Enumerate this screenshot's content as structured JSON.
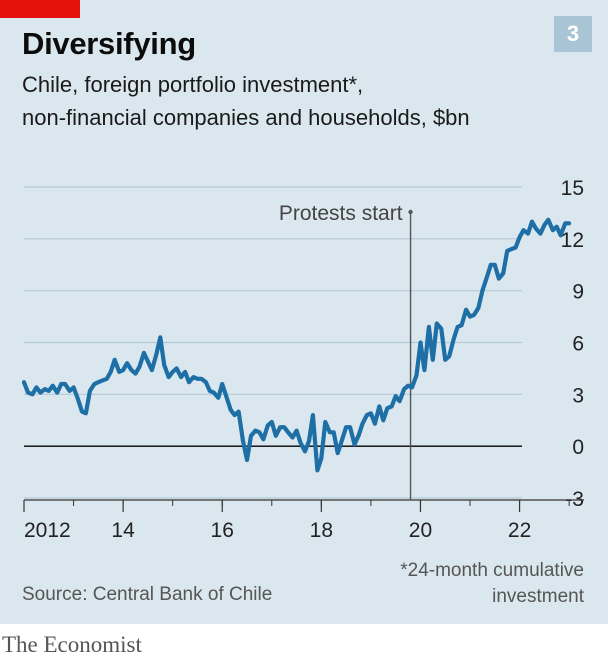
{
  "header": {
    "title": "Diversifying",
    "badge": "3",
    "subtitle_line1": "Chile, foreign portfolio investment*,",
    "subtitle_line2": "non-financial companies and households, $bn"
  },
  "footer": {
    "footnote_line1": "*24-month cumulative",
    "footnote_line2": "investment",
    "source": "Source: Central Bank of Chile",
    "brand": "The Economist"
  },
  "colors": {
    "accent_red": "#e3120b",
    "line": "#1d6fa5",
    "background": "#dbe7ef",
    "badge": "#a9c4d4"
  },
  "chart_data": {
    "type": "line",
    "title": "Diversifying",
    "subtitle": "Chile, foreign portfolio investment*, non-financial companies and households, $bn",
    "ylim": [
      -3,
      15
    ],
    "xlim": [
      2012,
      2023.3
    ],
    "y_ticks": [
      15,
      12,
      9,
      6,
      3,
      0,
      -3
    ],
    "x_ticks": [
      {
        "value": 2012,
        "label": "2012"
      },
      {
        "value": 2014,
        "label": "14"
      },
      {
        "value": 2016,
        "label": "16"
      },
      {
        "value": 2018,
        "label": "18"
      },
      {
        "value": 2020,
        "label": "20"
      },
      {
        "value": 2022,
        "label": "22"
      }
    ],
    "annotation": {
      "label": "Protests start",
      "x": 2019.8
    },
    "grid": true,
    "series": [
      {
        "x": [
          2012.0,
          2012.08,
          2012.17,
          2012.25,
          2012.33,
          2012.42,
          2012.5,
          2012.58,
          2012.67,
          2012.75,
          2012.83,
          2012.92,
          2013.0,
          2013.08,
          2013.17,
          2013.25,
          2013.33,
          2013.42,
          2013.5,
          2013.58,
          2013.67,
          2013.75,
          2013.83,
          2013.92,
          2014.0,
          2014.08,
          2014.17,
          2014.25,
          2014.33,
          2014.42,
          2014.5,
          2014.58,
          2014.67,
          2014.75,
          2014.83,
          2014.92,
          2015.0,
          2015.08,
          2015.17,
          2015.25,
          2015.33,
          2015.42,
          2015.5,
          2015.58,
          2015.67,
          2015.75,
          2015.83,
          2015.92,
          2016.0,
          2016.08,
          2016.17,
          2016.25,
          2016.33,
          2016.42,
          2016.5,
          2016.58,
          2016.67,
          2016.75,
          2016.83,
          2016.92,
          2017.0,
          2017.08,
          2017.17,
          2017.25,
          2017.33,
          2017.42,
          2017.5,
          2017.58,
          2017.67,
          2017.75,
          2017.83,
          2017.92,
          2018.0,
          2018.08,
          2018.17,
          2018.25,
          2018.33,
          2018.42,
          2018.5,
          2018.58,
          2018.67,
          2018.75,
          2018.83,
          2018.92,
          2019.0,
          2019.08,
          2019.17,
          2019.25,
          2019.33,
          2019.42,
          2019.5,
          2019.58,
          2019.67,
          2019.75,
          2019.83,
          2019.92,
          2020.0,
          2020.08,
          2020.17,
          2020.25,
          2020.33,
          2020.42,
          2020.5,
          2020.58,
          2020.67,
          2020.75,
          2020.83,
          2020.92,
          2021.0,
          2021.08,
          2021.17,
          2021.25,
          2021.33,
          2021.42,
          2021.5,
          2021.58,
          2021.67,
          2021.75,
          2021.83,
          2021.92,
          2022.0,
          2022.08,
          2022.17,
          2022.25,
          2022.33,
          2022.42,
          2022.5,
          2022.58,
          2022.67,
          2022.75,
          2022.83,
          2022.92,
          2023.0
        ],
        "y": [
          3.7,
          3.1,
          3.0,
          3.4,
          3.1,
          3.3,
          3.2,
          3.5,
          3.1,
          3.6,
          3.6,
          3.2,
          3.4,
          2.8,
          2.0,
          1.9,
          3.2,
          3.6,
          3.7,
          3.8,
          3.9,
          4.3,
          5.0,
          4.3,
          4.4,
          4.8,
          4.4,
          4.2,
          4.6,
          5.4,
          4.9,
          4.4,
          5.3,
          6.3,
          4.7,
          4.0,
          4.3,
          4.5,
          4.0,
          4.3,
          3.7,
          4.0,
          3.9,
          3.9,
          3.7,
          3.2,
          3.1,
          2.8,
          3.6,
          2.9,
          2.1,
          1.8,
          2.0,
          0.3,
          -0.8,
          0.6,
          0.9,
          0.8,
          0.4,
          1.2,
          1.4,
          0.6,
          1.1,
          1.1,
          0.8,
          0.5,
          0.9,
          0.2,
          -0.3,
          0.3,
          1.8,
          -1.4,
          -0.7,
          1.4,
          0.8,
          0.8,
          -0.4,
          0.4,
          1.1,
          1.1,
          0.1,
          0.6,
          1.3,
          1.8,
          1.9,
          1.3,
          2.3,
          1.5,
          2.2,
          2.3,
          2.9,
          2.6,
          3.3,
          3.5,
          3.4,
          4.1,
          6.0,
          4.4,
          6.9,
          5.0,
          7.1,
          6.8,
          5.0,
          5.2,
          6.2,
          6.9,
          7.0,
          7.9,
          7.5,
          7.6,
          8.0,
          9.0,
          9.7,
          10.5,
          10.5,
          9.7,
          10.0,
          11.3,
          11.4,
          11.5,
          12.1,
          12.5,
          12.3,
          13.0,
          12.6,
          12.3,
          12.8,
          13.1,
          12.5,
          12.7,
          12.2,
          12.9,
          12.9
        ]
      }
    ]
  }
}
